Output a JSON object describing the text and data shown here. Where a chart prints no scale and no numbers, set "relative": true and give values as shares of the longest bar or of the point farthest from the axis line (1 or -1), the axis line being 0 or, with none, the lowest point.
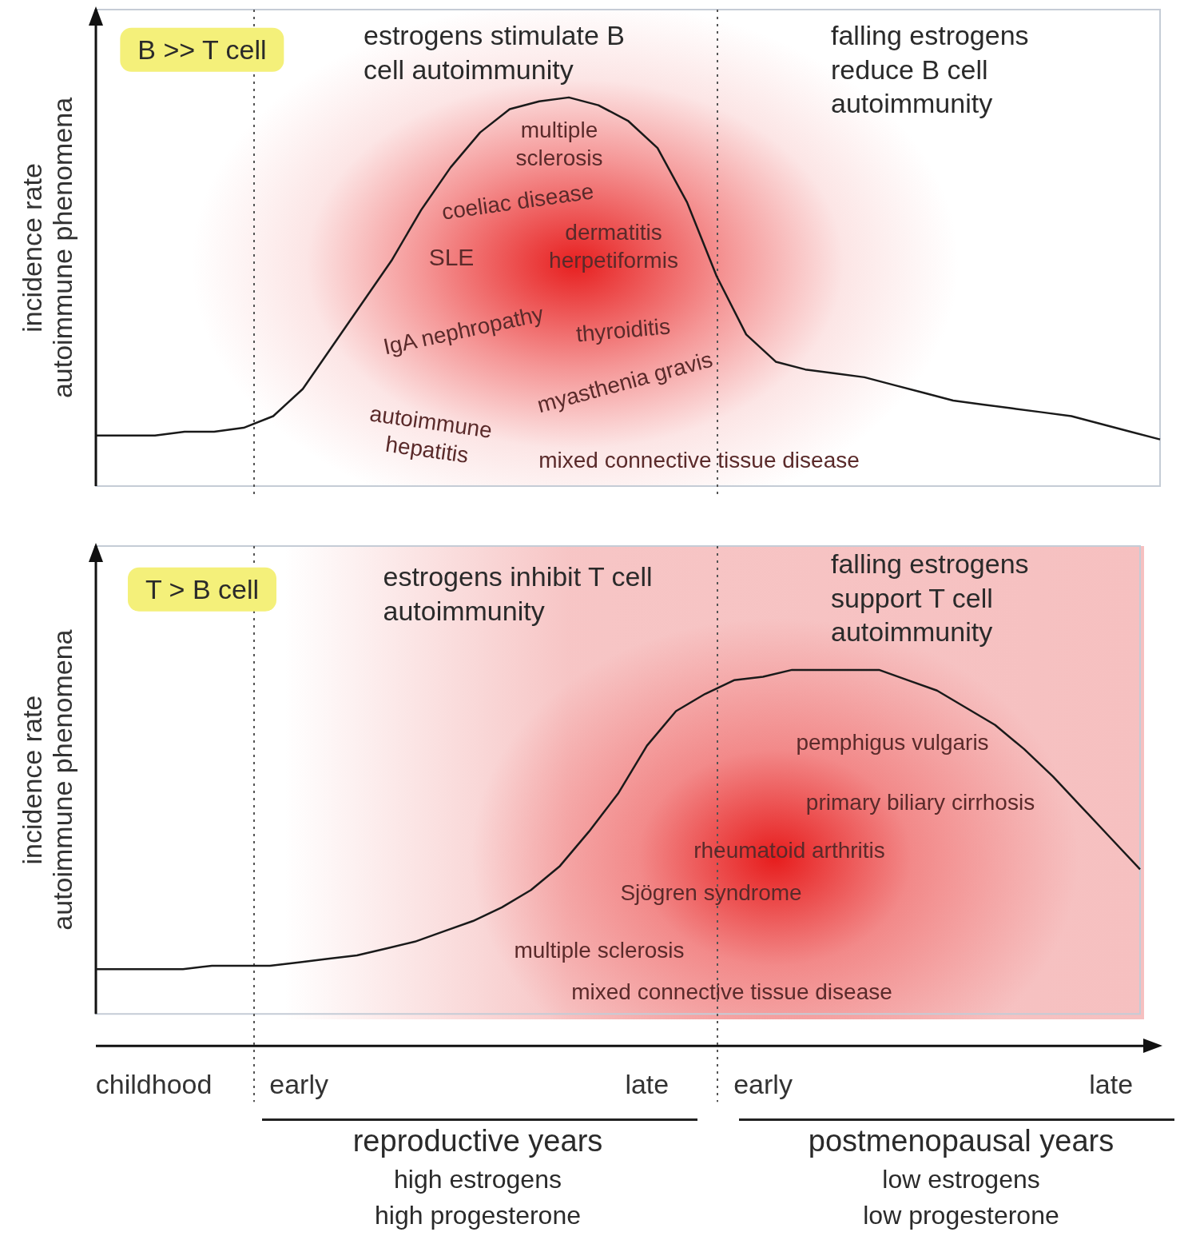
{
  "chart_data": [
    {
      "type": "line",
      "relative": true,
      "ylabel": "incidence rate\nautoimmune phenomena",
      "grid": false,
      "legend": false,
      "marker": "none",
      "line_style": "solid",
      "tick_labels": false,
      "categories": [
        null,
        null,
        null,
        null,
        null,
        null,
        null,
        null,
        null,
        null,
        null,
        null,
        null,
        null,
        null,
        null,
        null,
        null,
        null,
        null,
        null,
        null,
        null,
        null,
        null,
        null,
        null,
        null,
        null,
        null,
        null,
        null,
        null,
        null,
        null,
        null,
        null
      ],
      "series": [
        {
          "color": "#1a1a1a",
          "values": [
            0.13,
            0.13,
            0.13,
            0.14,
            0.14,
            0.15,
            0.18,
            0.25,
            0.36,
            0.47,
            0.58,
            0.71,
            0.82,
            0.91,
            0.97,
            0.99,
            1.0,
            0.98,
            0.94,
            0.87,
            0.73,
            0.54,
            0.39,
            0.32,
            0.3,
            0.29,
            0.28,
            0.26,
            0.24,
            0.22,
            0.21,
            0.2,
            0.19,
            0.18,
            0.16,
            0.14,
            0.12
          ]
        }
      ],
      "annotations": [
        "B >> T cell",
        "estrogens stimulate B cell autoimmunity",
        "falling estrogens reduce B cell autoimmunity",
        "multiple sclerosis",
        "coeliac disease",
        "SLE",
        "dermatitis herpetiformis",
        "IgA nephropathy",
        "thyroiditis",
        "myasthenia gravis",
        "autoimmune hepatitis",
        "mixed connective tissue disease"
      ]
    },
    {
      "type": "line",
      "relative": true,
      "ylabel": "incidence rate\nautoimmune phenomena",
      "grid": false,
      "legend": false,
      "marker": "none",
      "line_style": "solid",
      "categories": [
        null,
        null,
        "childhood",
        null,
        null,
        null,
        null,
        "early",
        null,
        null,
        null,
        null,
        null,
        null,
        null,
        null,
        null,
        null,
        null,
        "late",
        null,
        null,
        null,
        "early",
        null,
        null,
        null,
        null,
        null,
        null,
        null,
        null,
        null,
        null,
        null,
        "late",
        null
      ],
      "series": [
        {
          "color": "#1a1a1a",
          "values": [
            0.13,
            0.13,
            0.13,
            0.13,
            0.14,
            0.14,
            0.14,
            0.15,
            0.16,
            0.17,
            0.19,
            0.21,
            0.24,
            0.27,
            0.31,
            0.36,
            0.43,
            0.53,
            0.64,
            0.78,
            0.88,
            0.93,
            0.97,
            0.98,
            1.0,
            1.0,
            1.0,
            1.0,
            0.97,
            0.94,
            0.89,
            0.84,
            0.77,
            0.69,
            0.6,
            0.51,
            0.42
          ]
        }
      ],
      "annotations": [
        "T > B cell",
        "estrogens inhibit T cell autoimmunity",
        "falling estrogens support T cell autoimmunity",
        "pemphigus vulgaris",
        "primary biliary cirrhosis",
        "rheumatoid arthritis",
        "Sjögren syndrome",
        "multiple sclerosis",
        "mixed connective tissue disease",
        "reproductive years",
        "high estrogens",
        "high progesterone",
        "postmenopausal years",
        "low estrogens",
        "low progesterone"
      ]
    }
  ]
}
